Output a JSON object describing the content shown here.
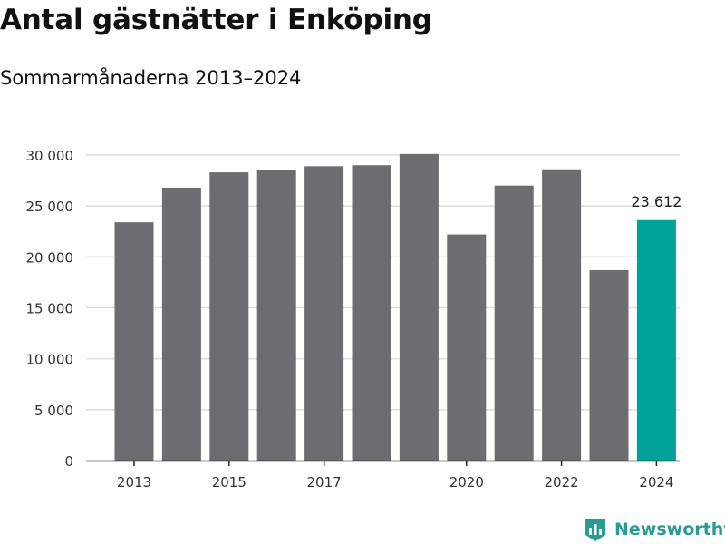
{
  "header": {
    "title": "Antal gästnätter i Enköping",
    "subtitle": "Sommarmånaderna 2013–2024"
  },
  "branding": {
    "logo_text": "Newsworthy",
    "logo_icon": "bar-chart-shield-icon",
    "color": "#2a9a94"
  },
  "colors": {
    "bar": "#6d6c71",
    "highlight": "#00a29a",
    "grid": "#dddddd",
    "axis": "#222222"
  },
  "chart_data": {
    "type": "bar",
    "title": "Antal gästnätter i Enköping",
    "subtitle": "Sommarmånaderna 2013–2024",
    "categories": [
      "2013",
      "2014",
      "2015",
      "2016",
      "2017",
      "2018",
      "2019",
      "2020",
      "2021",
      "2022",
      "2023",
      "2024"
    ],
    "values": [
      23400,
      26800,
      28300,
      28500,
      28900,
      29000,
      30100,
      22200,
      27000,
      28600,
      18700,
      23612
    ],
    "x_tick_labels": [
      "2013",
      "2015",
      "2017",
      "2020",
      "2022",
      "2024"
    ],
    "y_ticks": [
      0,
      5000,
      10000,
      15000,
      20000,
      25000,
      30000
    ],
    "y_tick_labels": [
      "0",
      "5 000",
      "10 000",
      "15 000",
      "20 000",
      "25 000",
      "30 000"
    ],
    "ylim": [
      0,
      30000
    ],
    "highlight_category": "2024",
    "annotation": {
      "category": "2024",
      "text": "23 612"
    },
    "xlabel": "",
    "ylabel": "",
    "grid": true,
    "legend": false
  }
}
